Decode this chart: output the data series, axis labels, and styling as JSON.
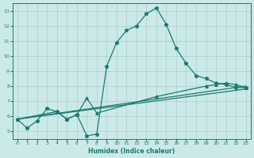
{
  "xlabel": "Humidex (Indice chaleur)",
  "xlim": [
    -0.5,
    23.5
  ],
  "ylim": [
    4.5,
    13.5
  ],
  "yticks": [
    5,
    6,
    7,
    8,
    9,
    10,
    11,
    12,
    13
  ],
  "xticks": [
    0,
    1,
    2,
    3,
    4,
    5,
    6,
    7,
    8,
    9,
    10,
    11,
    12,
    13,
    14,
    15,
    16,
    17,
    18,
    19,
    20,
    21,
    22,
    23
  ],
  "bg_color": "#cce9ea",
  "grid_color": "#aacccc",
  "line_color": "#1a7a6e",
  "line1_x": [
    0,
    1,
    2,
    3,
    4,
    5,
    6,
    7,
    8,
    9,
    10,
    11,
    12,
    13,
    14,
    15,
    16,
    17,
    18,
    19,
    20,
    21,
    22,
    23
  ],
  "line1_y": [
    5.8,
    5.2,
    5.7,
    6.5,
    6.3,
    5.8,
    6.1,
    4.7,
    4.8,
    9.3,
    10.9,
    11.7,
    12.0,
    12.8,
    13.2,
    12.1,
    10.5,
    9.5,
    8.7,
    8.5,
    8.2,
    8.1,
    7.9,
    7.9
  ],
  "line2_x": [
    0,
    23
  ],
  "line2_y": [
    5.8,
    8.0
  ],
  "line3_x": [
    0,
    23
  ],
  "line3_y": [
    5.8,
    7.8
  ],
  "line4_x": [
    0,
    4,
    5,
    6,
    7,
    8,
    14,
    19,
    20,
    21,
    22,
    23
  ],
  "line4_y": [
    5.8,
    6.3,
    5.8,
    6.1,
    7.2,
    6.2,
    7.3,
    8.0,
    8.1,
    8.2,
    8.1,
    7.9
  ]
}
